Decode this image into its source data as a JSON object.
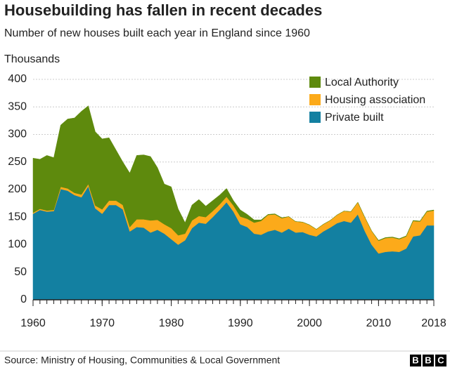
{
  "chart_data": {
    "type": "stacked_area",
    "title": "Housebuilding has fallen in recent decades",
    "subtitle": "Number of new houses built each year in England since 1960",
    "y_label": "Thousands",
    "source": "Source: Ministry of Housing, Communities & Local Government",
    "logo": [
      "B",
      "B",
      "C"
    ],
    "x": [
      1960,
      1961,
      1962,
      1963,
      1964,
      1965,
      1966,
      1967,
      1968,
      1969,
      1970,
      1971,
      1972,
      1973,
      1974,
      1975,
      1976,
      1977,
      1978,
      1979,
      1980,
      1981,
      1982,
      1983,
      1984,
      1985,
      1986,
      1987,
      1988,
      1989,
      1990,
      1991,
      1992,
      1993,
      1994,
      1995,
      1996,
      1997,
      1998,
      1999,
      2000,
      2001,
      2002,
      2003,
      2004,
      2005,
      2006,
      2007,
      2008,
      2009,
      2010,
      2011,
      2012,
      2013,
      2014,
      2015,
      2016,
      2017,
      2018
    ],
    "xlim": [
      1960,
      2018
    ],
    "xticks": [
      1960,
      1970,
      1980,
      1990,
      2000,
      2010,
      2018
    ],
    "ylim": [
      0,
      400
    ],
    "yticks": [
      0,
      50,
      100,
      150,
      200,
      250,
      300,
      350,
      400
    ],
    "grid": true,
    "legend": "top-right",
    "series": [
      {
        "name": "Private built",
        "color": "#1380a1",
        "values": [
          156,
          163,
          160,
          161,
          201,
          198,
          190,
          186,
          206,
          166,
          156,
          172,
          172,
          164,
          124,
          132,
          131,
          122,
          127,
          120,
          110,
          100,
          108,
          130,
          140,
          138,
          150,
          163,
          177,
          160,
          137,
          132,
          120,
          118,
          124,
          127,
          122,
          129,
          122,
          123,
          118,
          115,
          124,
          131,
          139,
          143,
          140,
          155,
          125,
          100,
          84,
          87,
          88,
          87,
          93,
          115,
          117,
          135,
          135
        ]
      },
      {
        "name": "Housing association",
        "color": "#fcaa1a",
        "values": [
          2,
          2,
          2,
          2,
          4,
          4,
          4,
          5,
          4,
          5,
          8,
          8,
          8,
          8,
          8,
          14,
          15,
          22,
          18,
          17,
          20,
          17,
          12,
          14,
          12,
          12,
          11,
          10,
          10,
          11,
          14,
          15,
          20,
          25,
          30,
          28,
          26,
          22,
          20,
          18,
          18,
          13,
          13,
          13,
          15,
          18,
          20,
          22,
          25,
          25,
          23,
          25,
          25,
          23,
          22,
          28,
          25,
          25,
          27
        ]
      },
      {
        "name": "Local Authority",
        "color": "#5e8a0d",
        "values": [
          99,
          90,
          100,
          95,
          112,
          126,
          136,
          151,
          142,
          134,
          128,
          114,
          92,
          78,
          98,
          116,
          117,
          116,
          95,
          73,
          75,
          48,
          20,
          28,
          30,
          20,
          19,
          17,
          15,
          9,
          12,
          8,
          5,
          2,
          1,
          1,
          1,
          0,
          0,
          0,
          0,
          0,
          0,
          0,
          0,
          0,
          0,
          0,
          0,
          0,
          1,
          1,
          1,
          1,
          1,
          1,
          1,
          1,
          1
        ]
      }
    ]
  }
}
